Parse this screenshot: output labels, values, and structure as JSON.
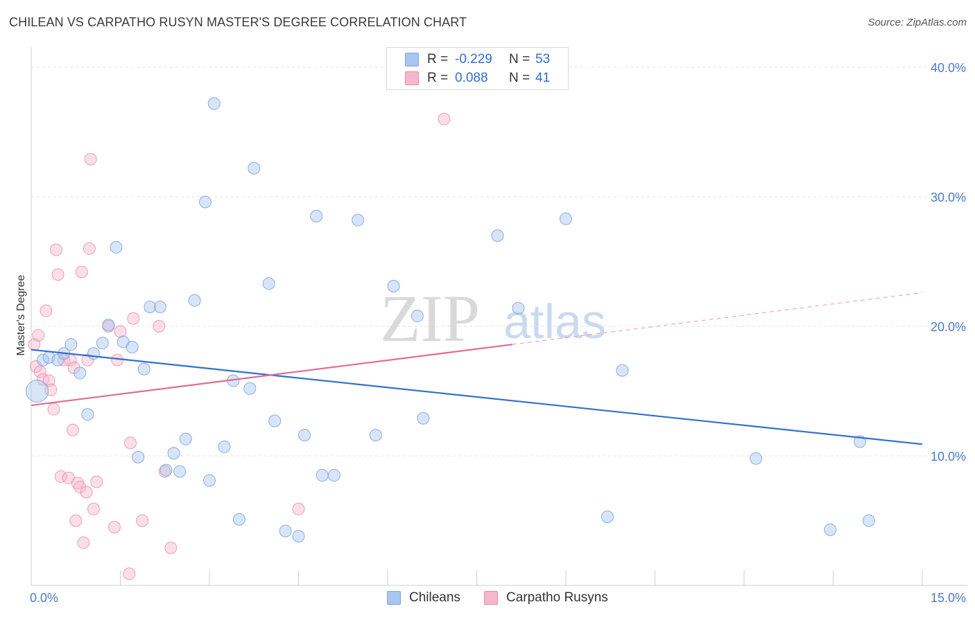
{
  "title": "CHILEAN VS CARPATHO RUSYN MASTER'S DEGREE CORRELATION CHART",
  "source": "Source: ZipAtlas.com",
  "watermark": {
    "zip": "ZIP",
    "atlas": "atlas"
  },
  "colors": {
    "blue": "#a8c6ef",
    "blue_edge": "#7ea6dc",
    "blue_line": "#2f6fd0",
    "pink": "#f6b7cb",
    "pink_edge": "#e88aa8",
    "pink_line": "#e06b95",
    "tick_text": "#4a7cc9",
    "grid": "#e3e3e3"
  },
  "legend": {
    "rows": [
      {
        "r_label": "R =",
        "r_value": "-0.229",
        "n_label": "N =",
        "n_value": "53"
      },
      {
        "r_label": "R =",
        "r_value": "0.088",
        "n_label": "N =",
        "n_value": "41"
      }
    ]
  },
  "bottom_legend": [
    "Chileans",
    "Carpatho Rusyns"
  ],
  "chart_data": {
    "type": "scatter",
    "title": "CHILEAN VS CARPATHO RUSYN MASTER'S DEGREE CORRELATION CHART",
    "xlabel": "",
    "ylabel": "Master's Degree",
    "xlim": [
      0,
      15
    ],
    "ylim": [
      0,
      40
    ],
    "x_tick_labels": [
      "0.0%",
      "15.0%"
    ],
    "y_ticks": [
      10,
      20,
      30,
      40
    ],
    "y_tick_labels": [
      "10.0%",
      "20.0%",
      "30.0%",
      "40.0%"
    ],
    "grid": true,
    "series": [
      {
        "name": "Chileans",
        "r": -0.229,
        "n": 53,
        "trend": {
          "x": [
            0,
            15
          ],
          "y": [
            18.2,
            10.9
          ]
        },
        "points": [
          [
            0.1,
            15.0
          ],
          [
            0.2,
            17.4
          ],
          [
            0.3,
            17.6
          ],
          [
            0.45,
            17.4
          ],
          [
            0.55,
            17.9
          ],
          [
            0.67,
            18.6
          ],
          [
            0.82,
            16.4
          ],
          [
            0.95,
            13.2
          ],
          [
            1.05,
            17.9
          ],
          [
            1.2,
            18.7
          ],
          [
            1.3,
            20.1
          ],
          [
            1.43,
            26.1
          ],
          [
            1.55,
            18.8
          ],
          [
            1.7,
            18.4
          ],
          [
            1.8,
            9.9
          ],
          [
            1.9,
            16.7
          ],
          [
            2.0,
            21.5
          ],
          [
            2.17,
            21.5
          ],
          [
            2.27,
            8.9
          ],
          [
            2.4,
            10.2
          ],
          [
            2.5,
            8.8
          ],
          [
            2.6,
            11.3
          ],
          [
            2.75,
            22.0
          ],
          [
            2.93,
            29.6
          ],
          [
            3.0,
            8.1
          ],
          [
            3.08,
            37.2
          ],
          [
            3.25,
            10.7
          ],
          [
            3.4,
            15.8
          ],
          [
            3.5,
            5.1
          ],
          [
            3.68,
            15.2
          ],
          [
            3.75,
            32.2
          ],
          [
            4.0,
            23.3
          ],
          [
            4.1,
            12.7
          ],
          [
            4.28,
            4.2
          ],
          [
            4.5,
            3.8
          ],
          [
            4.6,
            11.6
          ],
          [
            4.8,
            28.5
          ],
          [
            4.9,
            8.5
          ],
          [
            5.1,
            8.5
          ],
          [
            5.5,
            28.2
          ],
          [
            5.8,
            11.6
          ],
          [
            6.1,
            23.1
          ],
          [
            6.5,
            20.8
          ],
          [
            6.6,
            12.9
          ],
          [
            7.85,
            27.0
          ],
          [
            8.2,
            21.4
          ],
          [
            9.0,
            28.3
          ],
          [
            9.7,
            5.3
          ],
          [
            9.95,
            16.6
          ],
          [
            12.2,
            9.8
          ],
          [
            13.45,
            4.3
          ],
          [
            13.95,
            11.1
          ],
          [
            14.1,
            5.0
          ]
        ]
      },
      {
        "name": "Carpatho Rusyns",
        "r": 0.088,
        "n": 41,
        "trend": {
          "x": [
            0,
            8.1
          ],
          "y": [
            13.9,
            18.6
          ]
        },
        "trend_extension": {
          "x": [
            8.1,
            15
          ],
          "y": [
            18.6,
            22.6
          ]
        },
        "points": [
          [
            0.05,
            18.6
          ],
          [
            0.08,
            16.9
          ],
          [
            0.12,
            19.3
          ],
          [
            0.15,
            16.5
          ],
          [
            0.2,
            15.9
          ],
          [
            0.25,
            21.2
          ],
          [
            0.3,
            15.8
          ],
          [
            0.33,
            15.1
          ],
          [
            0.38,
            13.6
          ],
          [
            0.42,
            25.9
          ],
          [
            0.45,
            24.0
          ],
          [
            0.5,
            8.4
          ],
          [
            0.55,
            17.4
          ],
          [
            0.63,
            8.3
          ],
          [
            0.66,
            17.4
          ],
          [
            0.7,
            12.0
          ],
          [
            0.72,
            16.8
          ],
          [
            0.75,
            5.0
          ],
          [
            0.78,
            7.9
          ],
          [
            0.82,
            7.6
          ],
          [
            0.85,
            24.2
          ],
          [
            0.88,
            3.3
          ],
          [
            0.93,
            7.2
          ],
          [
            0.95,
            17.4
          ],
          [
            0.98,
            26.0
          ],
          [
            1.0,
            32.9
          ],
          [
            1.05,
            5.9
          ],
          [
            1.1,
            8.0
          ],
          [
            1.3,
            20.0
          ],
          [
            1.4,
            4.5
          ],
          [
            1.45,
            17.4
          ],
          [
            1.5,
            19.6
          ],
          [
            1.65,
            0.9
          ],
          [
            1.67,
            11.0
          ],
          [
            1.72,
            20.6
          ],
          [
            1.87,
            5.0
          ],
          [
            2.25,
            8.8
          ],
          [
            2.35,
            2.9
          ],
          [
            4.5,
            5.9
          ],
          [
            6.95,
            36.0
          ],
          [
            2.15,
            20.0
          ]
        ]
      }
    ]
  }
}
